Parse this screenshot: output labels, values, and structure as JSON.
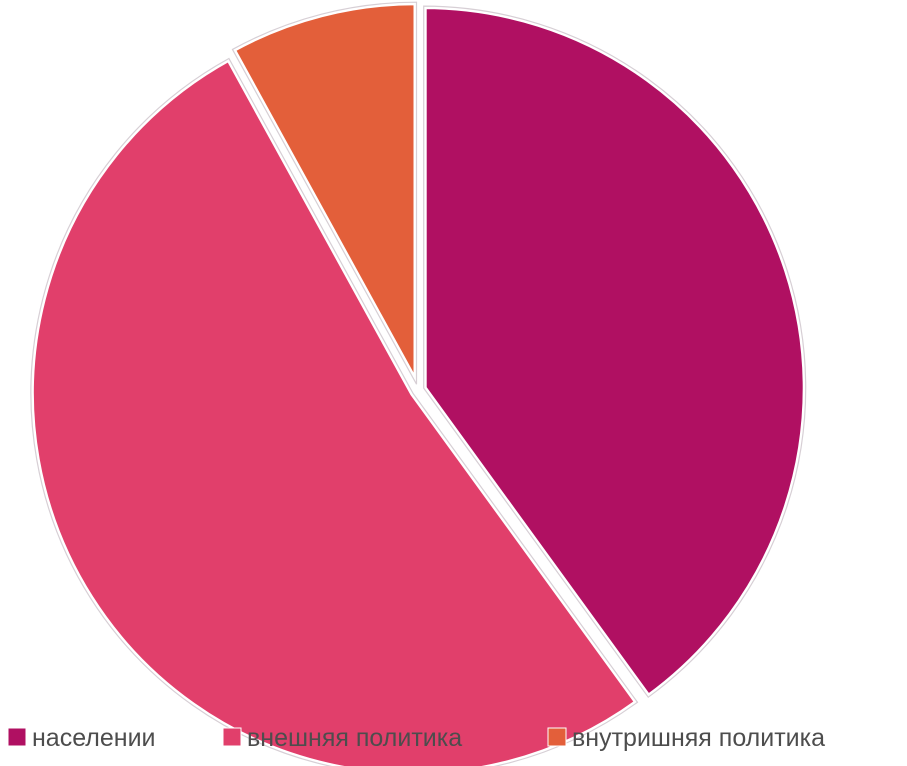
{
  "chart_data": {
    "type": "pie",
    "title": "",
    "slices": [
      {
        "label": "населении",
        "value": 40,
        "color": "#B01062"
      },
      {
        "label": "внешняя политика",
        "value": 52,
        "color": "#E13F6B"
      },
      {
        "label": "внутришняя политика",
        "value": 8,
        "color": "#E35F3A"
      }
    ],
    "legend": {
      "placement": "bottom",
      "items": [
        "населении",
        "внешняя политика",
        "внутришняя политика"
      ]
    }
  }
}
